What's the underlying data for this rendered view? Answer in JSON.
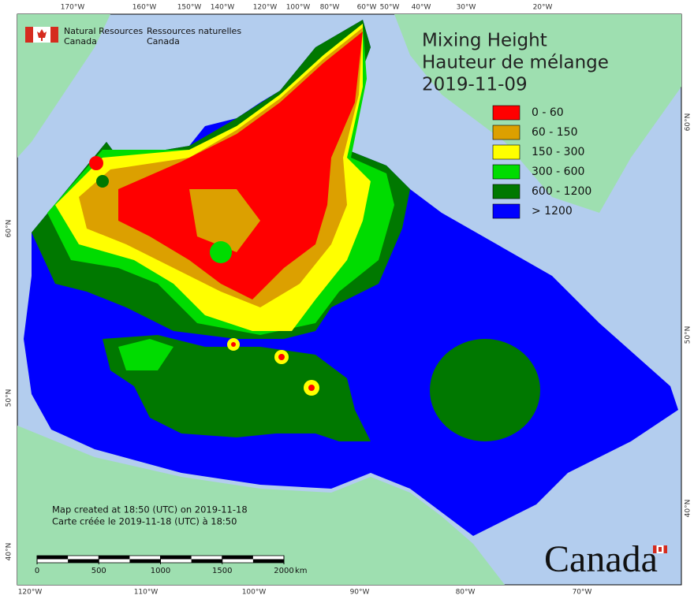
{
  "header": {
    "en": [
      "Natural Resources",
      "Canada"
    ],
    "fr": [
      "Ressources naturelles",
      "Canada"
    ]
  },
  "title": [
    "Mixing Height",
    "Hauteur de mélange",
    "2019-11-09"
  ],
  "legend": [
    {
      "label": "0 - 60",
      "color": "#ff0000"
    },
    {
      "label": "60 - 150",
      "color": "#dca000"
    },
    {
      "label": "150 - 300",
      "color": "#ffff00"
    },
    {
      "label": "300 - 600",
      "color": "#00dc00"
    },
    {
      "label": "600 - 1200",
      "color": "#007800"
    },
    {
      "label": "> 1200",
      "color": "#0000ff"
    }
  ],
  "footer": [
    "Map created at 18:50 (UTC) on 2019-11-18",
    "Carte créée le 2019-11-18 (UTC) à 18:50"
  ],
  "scale": {
    "ticks": [
      0,
      500,
      1000,
      1500,
      2000
    ],
    "unit": "km"
  },
  "graticule": {
    "top": [
      "170°W",
      "160°W",
      "150°W",
      "140°W",
      "120°W",
      "100°W",
      "80°W",
      "60°W",
      "50°W",
      "40°W",
      "30°W",
      "20°W"
    ],
    "bottom": [
      "120°W",
      "110°W",
      "100°W",
      "90°W",
      "80°W",
      "70°W"
    ],
    "left": [
      "60°N",
      "50°N",
      "40°N"
    ],
    "right": [
      "60°N",
      "50°N",
      "40°N"
    ]
  },
  "wordmark": "Canada"
}
